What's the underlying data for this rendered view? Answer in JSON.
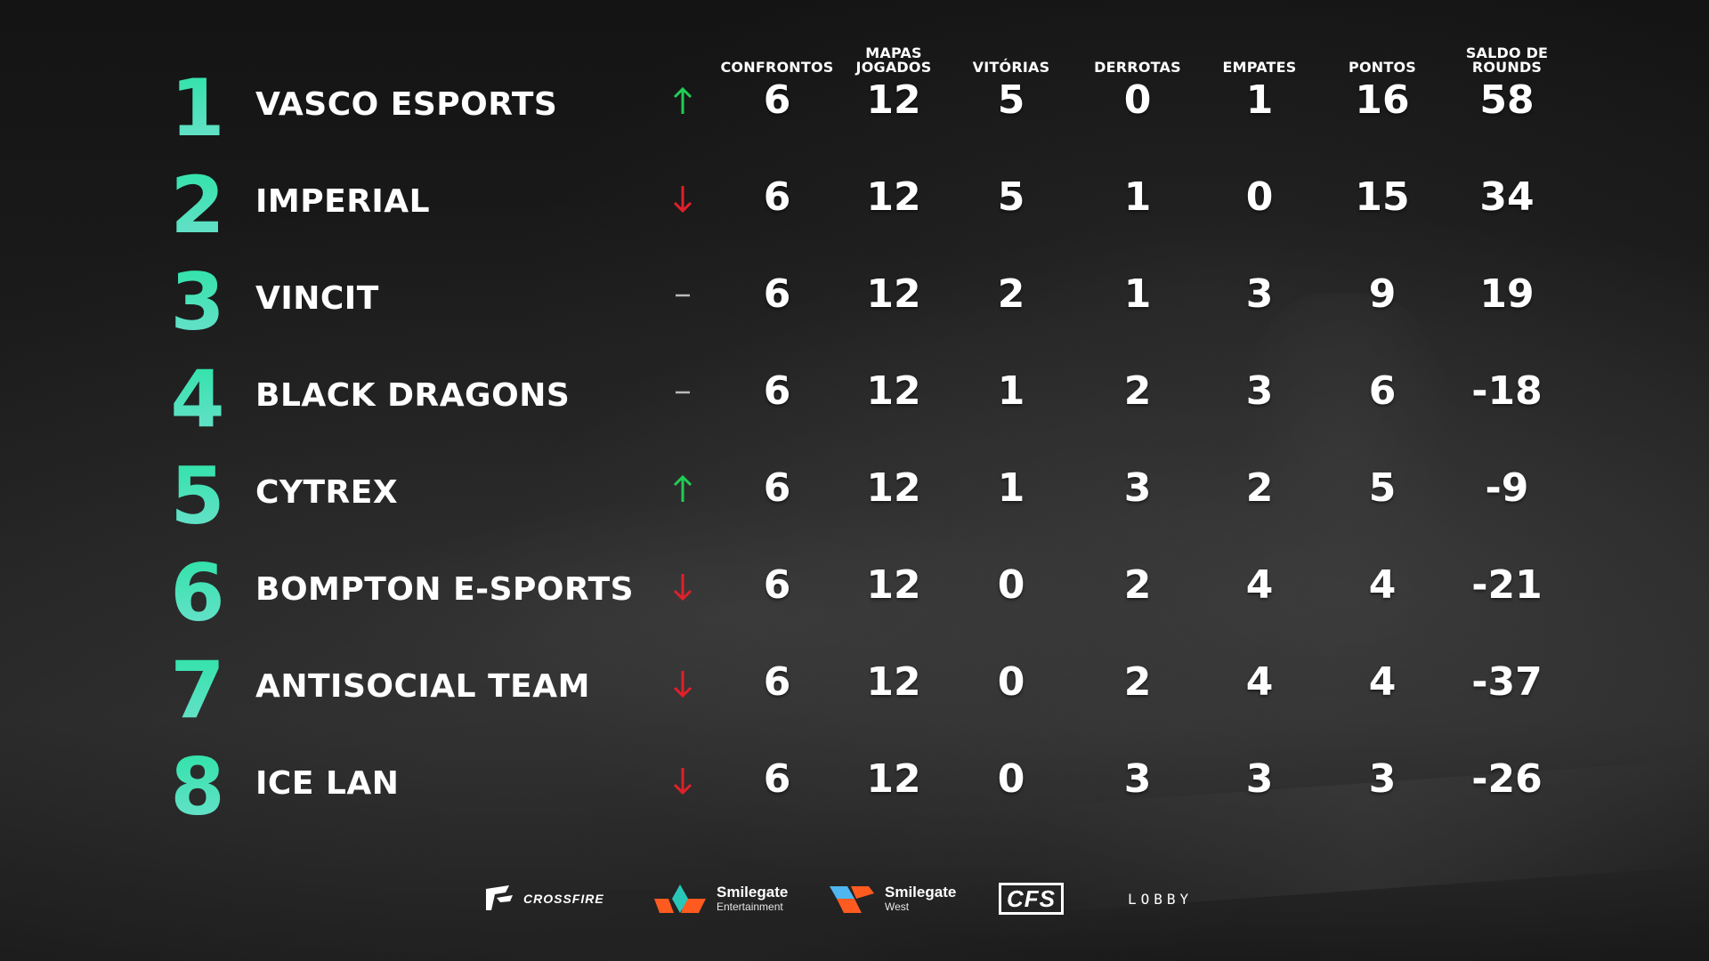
{
  "headers": {
    "confrontos": "CONFRONTOS",
    "mapas_jogados": "MAPAS\nJOGADOS",
    "vitorias": "VITÓRIAS",
    "derrotas": "DERROTAS",
    "empates": "EMPATES",
    "pontos": "PONTOS",
    "saldo_de_rounds": "SALDO DE\nROUNDS"
  },
  "rows": [
    {
      "rank": "1",
      "team": "VASCO ESPORTS",
      "trend": "up",
      "confrontos": "6",
      "mapas_jogados": "12",
      "vitorias": "5",
      "derrotas": "0",
      "empates": "1",
      "pontos": "16",
      "saldo": "58"
    },
    {
      "rank": "2",
      "team": "IMPERIAL",
      "trend": "down",
      "confrontos": "6",
      "mapas_jogados": "12",
      "vitorias": "5",
      "derrotas": "1",
      "empates": "0",
      "pontos": "15",
      "saldo": "34"
    },
    {
      "rank": "3",
      "team": "VINCIT",
      "trend": "same",
      "confrontos": "6",
      "mapas_jogados": "12",
      "vitorias": "2",
      "derrotas": "1",
      "empates": "3",
      "pontos": "9",
      "saldo": "19"
    },
    {
      "rank": "4",
      "team": "BLACK DRAGONS",
      "trend": "same",
      "confrontos": "6",
      "mapas_jogados": "12",
      "vitorias": "1",
      "derrotas": "2",
      "empates": "3",
      "pontos": "6",
      "saldo": "-18"
    },
    {
      "rank": "5",
      "team": "CYTREX",
      "trend": "up",
      "confrontos": "6",
      "mapas_jogados": "12",
      "vitorias": "1",
      "derrotas": "3",
      "empates": "2",
      "pontos": "5",
      "saldo": "-9"
    },
    {
      "rank": "6",
      "team": "BOMPTON E-SPORTS",
      "trend": "down",
      "confrontos": "6",
      "mapas_jogados": "12",
      "vitorias": "0",
      "derrotas": "2",
      "empates": "4",
      "pontos": "4",
      "saldo": "-21"
    },
    {
      "rank": "7",
      "team": "ANTISOCIAL TEAM",
      "trend": "down",
      "confrontos": "6",
      "mapas_jogados": "12",
      "vitorias": "0",
      "derrotas": "2",
      "empates": "4",
      "pontos": "4",
      "saldo": "-37"
    },
    {
      "rank": "8",
      "team": "ICE LAN",
      "trend": "down",
      "confrontos": "6",
      "mapas_jogados": "12",
      "vitorias": "0",
      "derrotas": "3",
      "empates": "3",
      "pontos": "3",
      "saldo": "-26"
    }
  ],
  "sponsors": {
    "crossfire": "CROSSFIRE",
    "smilegate_entertainment": {
      "name": "Smilegate",
      "sub": "Entertainment"
    },
    "smilegate_west": {
      "name": "Smilegate",
      "sub": "West"
    },
    "cfs": "CFS",
    "lobby": "LOBBY"
  },
  "colors": {
    "rank_gradient_top": "#2fe3a8",
    "rank_gradient_bottom": "#6be0cc",
    "trend_up": "#22cc55",
    "trend_down": "#e0202a",
    "trend_same": "#bbbbbb",
    "text": "#ffffff",
    "smilegate_orange": "#ff5a1f",
    "smilegate_teal": "#29c7b8",
    "smilegate_blue": "#4fb6f0"
  },
  "icons": {
    "up": "arrow-up-icon",
    "down": "arrow-down-icon",
    "same": "dash-icon"
  }
}
